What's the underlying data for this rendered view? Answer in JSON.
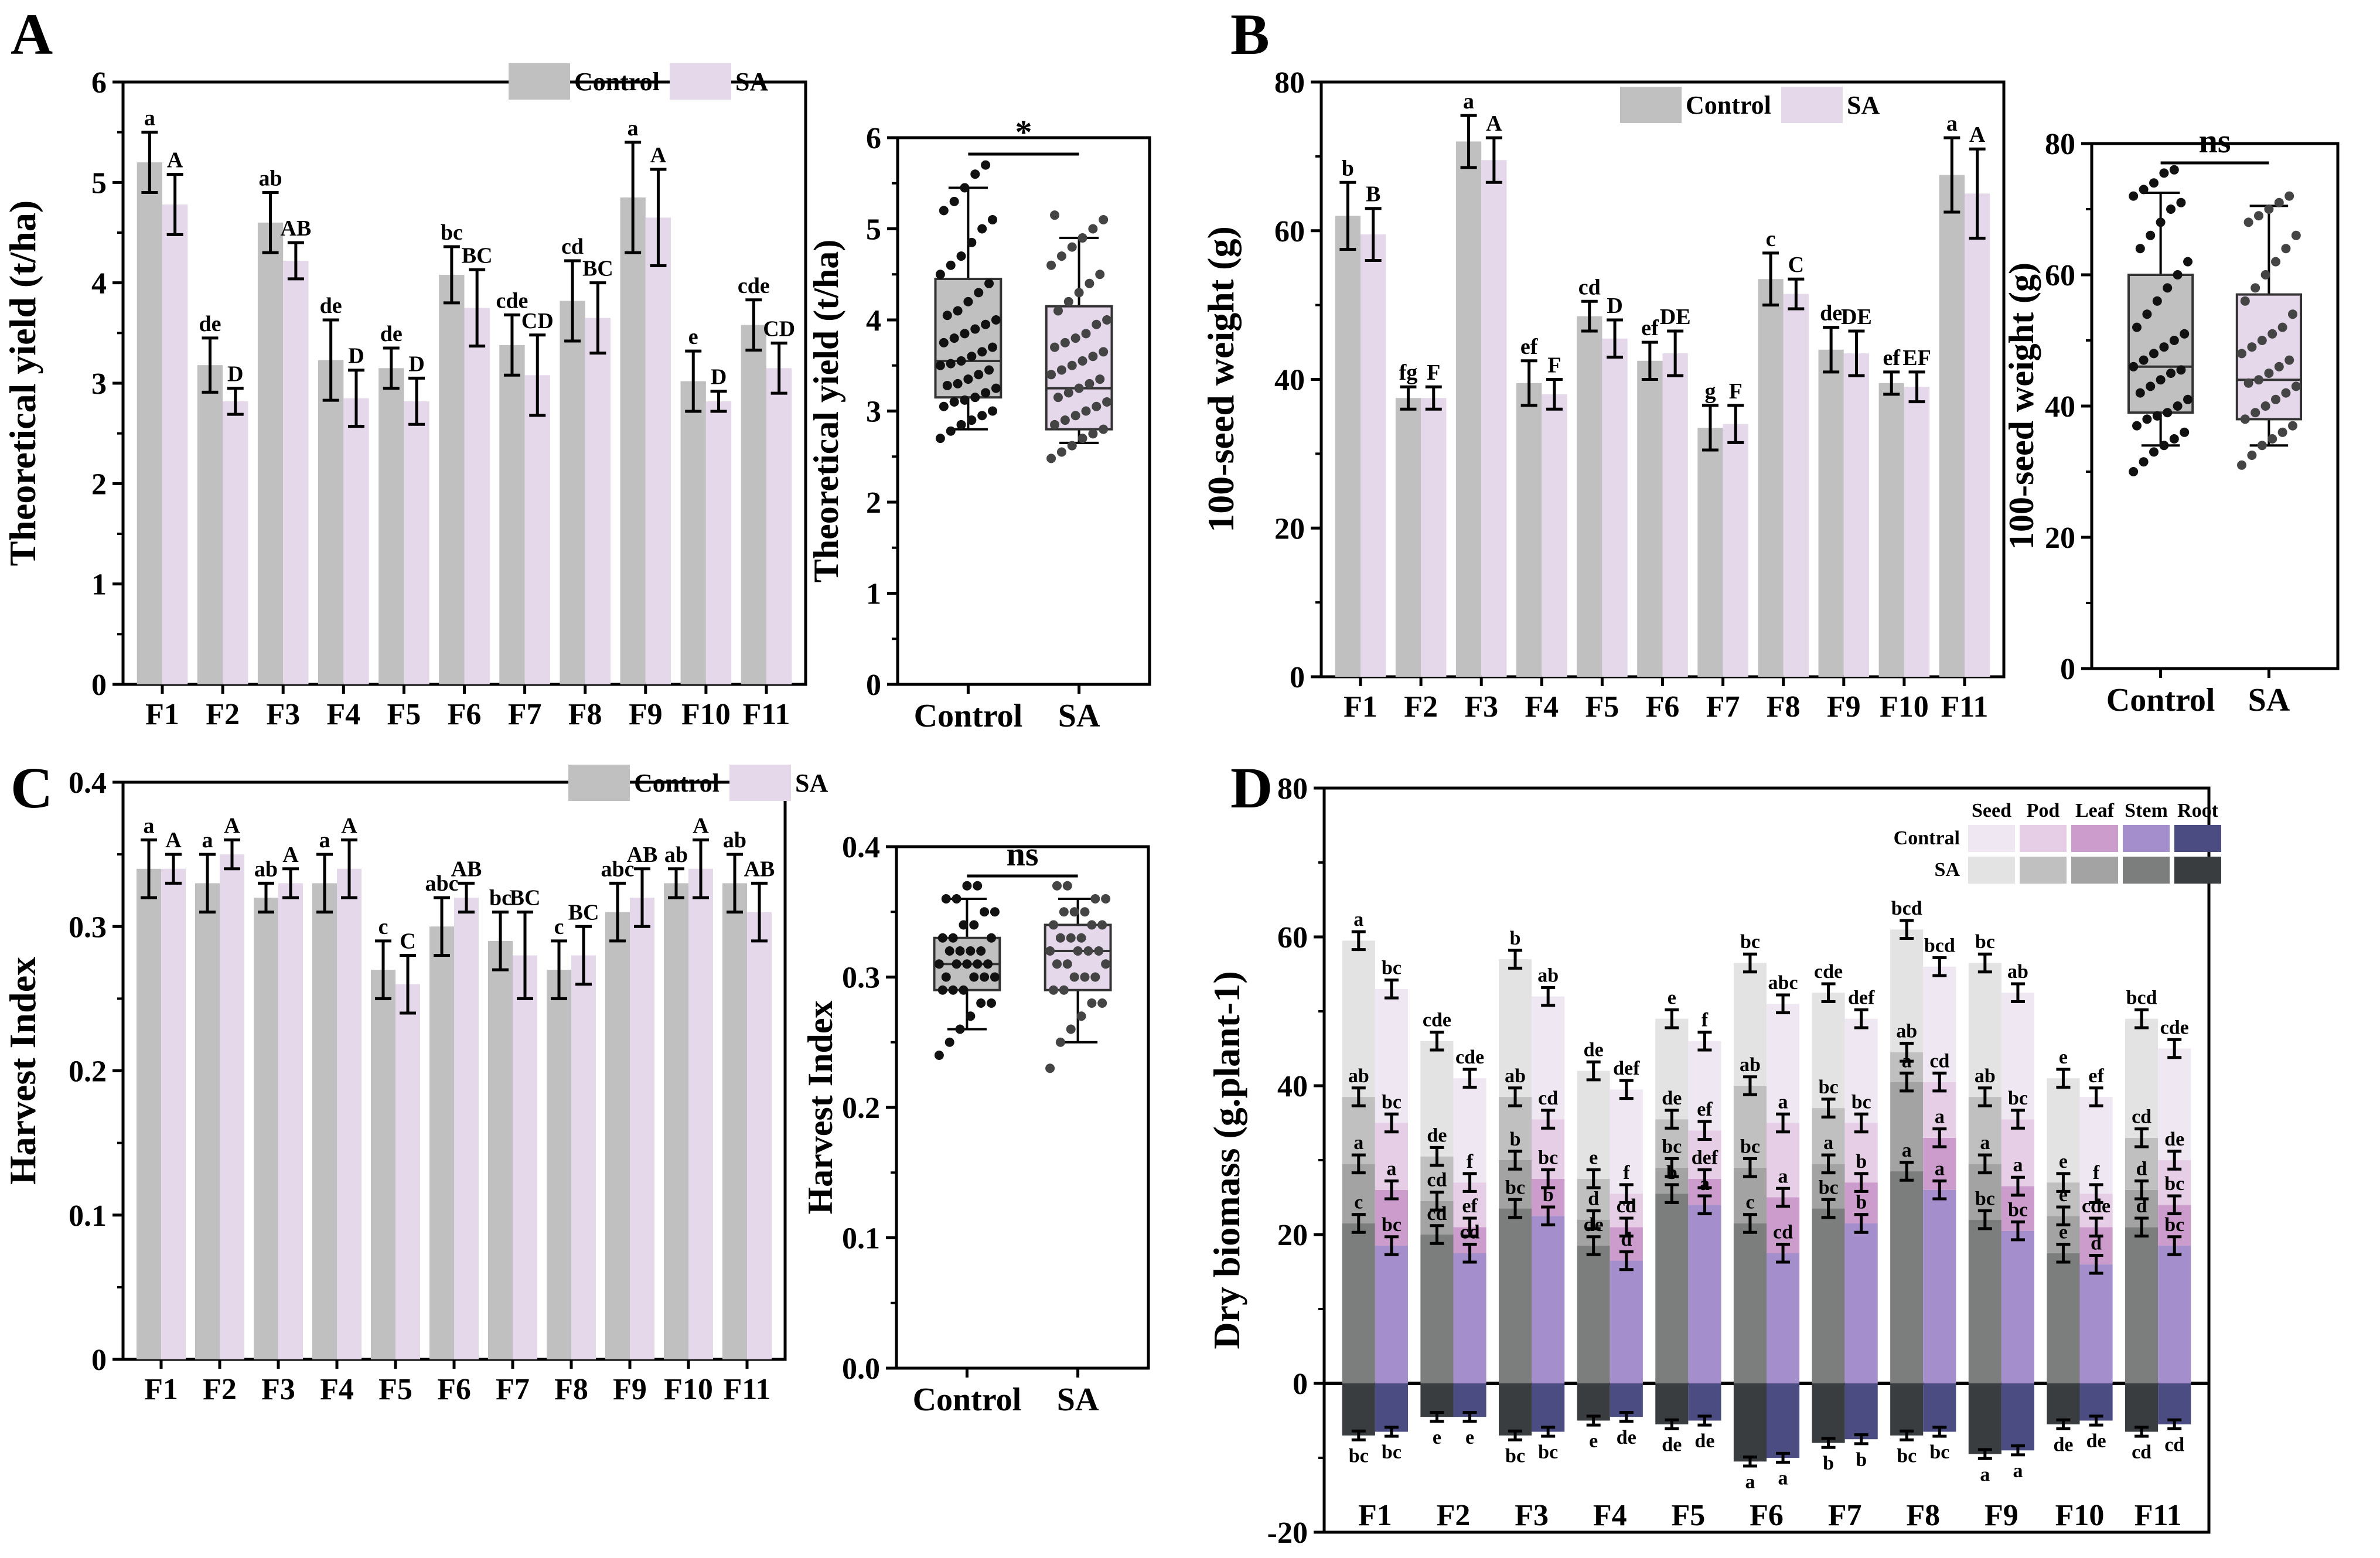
{
  "figure": {
    "panels": [
      {
        "letter": "A"
      },
      {
        "letter": "B"
      },
      {
        "letter": "C"
      },
      {
        "letter": "D"
      }
    ]
  },
  "colors": {
    "control": "#c0c0c0",
    "sa": "#e4d8ea",
    "seed_sa": "#e3e3e3",
    "pod_sa": "#c0c0c0",
    "leaf_sa": "#a3a3a3",
    "stem_sa": "#7c7e7e",
    "root_sa": "#3a3d40",
    "seed_ct": "#efe8f2",
    "pod_ct": "#e6cfe6",
    "leaf_ct": "#cc9ccc",
    "stem_ct": "#a48ecb",
    "root_ct": "#4a4c82"
  },
  "chart_data": [
    {
      "id": "A-bar",
      "type": "bar",
      "title": "",
      "xlabel": "",
      "ylabel": "Theoretical yield (t/ha)",
      "ylim": [
        0,
        6
      ],
      "yticks": [
        "0",
        "1",
        "2",
        "3",
        "4",
        "5",
        "6"
      ],
      "categories": [
        "F1",
        "F2",
        "F3",
        "F4",
        "F5",
        "F6",
        "F7",
        "F8",
        "F9",
        "F10",
        "F11"
      ],
      "legend": [
        "Control",
        "SA"
      ],
      "series": [
        {
          "name": "Control",
          "values": [
            5.2,
            3.18,
            4.6,
            3.23,
            3.15,
            4.08,
            3.38,
            3.82,
            4.85,
            3.02,
            3.58
          ],
          "err": [
            0.3,
            0.27,
            0.3,
            0.4,
            0.2,
            0.28,
            0.3,
            0.4,
            0.55,
            0.3,
            0.25
          ],
          "letters": [
            "a",
            "de",
            "ab",
            "de",
            "de",
            "bc",
            "cde",
            "cd",
            "a",
            "e",
            "cde"
          ]
        },
        {
          "name": "SA",
          "values": [
            4.78,
            2.82,
            4.22,
            2.85,
            2.82,
            3.75,
            3.08,
            3.65,
            4.65,
            2.82,
            3.15
          ],
          "err": [
            0.3,
            0.13,
            0.18,
            0.28,
            0.23,
            0.38,
            0.4,
            0.35,
            0.48,
            0.1,
            0.25
          ],
          "letters": [
            "A",
            "D",
            "AB",
            "D",
            "D",
            "BC",
            "CD",
            "BC",
            "A",
            "D",
            "CD"
          ]
        }
      ]
    },
    {
      "id": "A-box",
      "type": "box",
      "ylabel": "Theoretical yield (t/ha)",
      "ylim": [
        0,
        6
      ],
      "yticks": [
        "0",
        "1",
        "2",
        "3",
        "4",
        "5",
        "6"
      ],
      "categories": [
        "Control",
        "SA"
      ],
      "significance": "*",
      "boxes": [
        {
          "name": "Control",
          "min": 2.8,
          "q1": 3.15,
          "median": 3.55,
          "q3": 4.45,
          "max": 5.45,
          "points": [
            2.7,
            2.78,
            2.85,
            2.9,
            2.95,
            3.0,
            3.05,
            3.1,
            3.12,
            3.15,
            3.2,
            3.25,
            3.28,
            3.3,
            3.35,
            3.4,
            3.45,
            3.5,
            3.52,
            3.55,
            3.6,
            3.65,
            3.7,
            3.75,
            3.8,
            3.85,
            3.9,
            3.95,
            4.0,
            4.05,
            4.1,
            4.2,
            4.3,
            4.4,
            4.5,
            4.6,
            4.7,
            4.85,
            5.0,
            5.1,
            5.2,
            5.3,
            5.45,
            5.6,
            5.7
          ]
        },
        {
          "name": "SA",
          "min": 2.65,
          "q1": 2.8,
          "median": 3.25,
          "q3": 4.15,
          "max": 4.9,
          "points": [
            2.48,
            2.55,
            2.62,
            2.7,
            2.75,
            2.8,
            2.85,
            2.9,
            2.95,
            3.0,
            3.05,
            3.1,
            3.15,
            3.2,
            3.25,
            3.3,
            3.35,
            3.4,
            3.45,
            3.5,
            3.55,
            3.6,
            3.65,
            3.7,
            3.75,
            3.8,
            3.85,
            3.95,
            4.0,
            4.1,
            4.2,
            4.3,
            4.4,
            4.5,
            4.6,
            4.7,
            4.8,
            4.9,
            5.0,
            5.1,
            5.15
          ]
        }
      ]
    },
    {
      "id": "B-bar",
      "type": "bar",
      "ylabel": "100-seed weight (g)",
      "ylim": [
        0,
        80
      ],
      "yticks": [
        "0",
        "20",
        "40",
        "60",
        "80"
      ],
      "categories": [
        "F1",
        "F2",
        "F3",
        "F4",
        "F5",
        "F6",
        "F7",
        "F8",
        "F9",
        "F10",
        "F11"
      ],
      "legend": [
        "Control",
        "SA"
      ],
      "series": [
        {
          "name": "Control",
          "values": [
            62,
            37.5,
            72,
            39.5,
            48.5,
            42.5,
            33.5,
            53.5,
            44,
            39.5,
            67.5
          ],
          "err": [
            4.5,
            1.5,
            3.5,
            3,
            2,
            2.5,
            3,
            3.5,
            3,
            1.5,
            5
          ],
          "letters": [
            "b",
            "fg",
            "a",
            "ef",
            "cd",
            "ef",
            "g",
            "c",
            "de",
            "ef",
            "a"
          ]
        },
        {
          "name": "SA",
          "values": [
            59.5,
            37.5,
            69.5,
            38,
            45.5,
            43.5,
            34,
            51.5,
            43.5,
            39,
            65
          ],
          "err": [
            3.5,
            1.5,
            3,
            2,
            2.5,
            3,
            2.5,
            2,
            3,
            2,
            6
          ],
          "letters": [
            "B",
            "F",
            "A",
            "F",
            "D",
            "DE",
            "F",
            "C",
            "DE",
            "EF",
            "A"
          ]
        }
      ]
    },
    {
      "id": "B-box",
      "type": "box",
      "ylabel": "100-seed weight (g)",
      "ylim": [
        0,
        80
      ],
      "yticks": [
        "0",
        "20",
        "40",
        "60",
        "80"
      ],
      "categories": [
        "Control",
        "SA"
      ],
      "significance": "ns",
      "boxes": [
        {
          "name": "Control",
          "min": 34,
          "q1": 39,
          "median": 46,
          "q3": 60,
          "max": 72.5,
          "points": [
            30,
            31.5,
            33,
            34,
            35,
            36,
            37,
            38,
            38.5,
            39,
            40,
            41,
            42,
            43,
            44,
            45,
            45.5,
            46,
            47,
            48,
            49,
            50,
            51,
            52,
            54,
            56,
            58,
            60,
            62,
            64,
            66,
            68,
            70,
            71,
            72,
            73,
            74,
            75.5,
            76
          ]
        },
        {
          "name": "SA",
          "min": 34,
          "q1": 38,
          "median": 44,
          "q3": 57,
          "max": 70.5,
          "points": [
            31,
            32.5,
            34,
            35,
            36,
            37,
            38,
            39,
            40,
            41,
            42,
            43,
            43.5,
            44,
            45,
            46,
            47,
            48,
            49,
            50,
            51,
            52,
            54,
            56,
            58,
            60,
            62,
            64,
            66,
            68,
            69,
            70,
            71,
            72
          ]
        }
      ]
    },
    {
      "id": "C-bar",
      "type": "bar",
      "ylabel": "Harvest Index",
      "ylim": [
        0,
        0.4
      ],
      "yticks": [
        "0",
        "0.1",
        "0.2",
        "0.3",
        "0.4"
      ],
      "categories": [
        "F1",
        "F2",
        "F3",
        "F4",
        "F5",
        "F6",
        "F7",
        "F8",
        "F9",
        "F10",
        "F11"
      ],
      "legend": [
        "Control",
        "SA"
      ],
      "series": [
        {
          "name": "Control",
          "values": [
            0.34,
            0.33,
            0.32,
            0.33,
            0.27,
            0.3,
            0.29,
            0.27,
            0.31,
            0.33,
            0.33
          ],
          "err": [
            0.02,
            0.02,
            0.01,
            0.02,
            0.02,
            0.02,
            0.02,
            0.02,
            0.02,
            0.01,
            0.02
          ],
          "letters": [
            "a",
            "a",
            "ab",
            "a",
            "c",
            "abc",
            "bc",
            "c",
            "abc",
            "ab",
            "ab"
          ]
        },
        {
          "name": "SA",
          "values": [
            0.34,
            0.35,
            0.33,
            0.34,
            0.26,
            0.32,
            0.28,
            0.28,
            0.32,
            0.34,
            0.31
          ],
          "err": [
            0.01,
            0.01,
            0.01,
            0.02,
            0.02,
            0.01,
            0.03,
            0.02,
            0.02,
            0.02,
            0.02
          ],
          "letters": [
            "A",
            "A",
            "A",
            "A",
            "C",
            "AB",
            "BC",
            "BC",
            "AB",
            "A",
            "AB"
          ]
        }
      ]
    },
    {
      "id": "C-box",
      "type": "box",
      "ylabel": "Harvest Index",
      "ylim": [
        0,
        0.4
      ],
      "yticks": [
        "0.0",
        "0.1",
        "0.2",
        "0.3",
        "0.4"
      ],
      "categories": [
        "Control",
        "SA"
      ],
      "significance": "ns",
      "boxes": [
        {
          "name": "Control",
          "min": 0.26,
          "q1": 0.29,
          "median": 0.31,
          "q3": 0.33,
          "max": 0.36,
          "points": [
            0.24,
            0.25,
            0.26,
            0.27,
            0.28,
            0.28,
            0.29,
            0.29,
            0.29,
            0.3,
            0.3,
            0.3,
            0.3,
            0.31,
            0.31,
            0.31,
            0.31,
            0.31,
            0.32,
            0.32,
            0.32,
            0.32,
            0.33,
            0.33,
            0.33,
            0.34,
            0.34,
            0.35,
            0.35,
            0.36,
            0.36,
            0.37,
            0.37
          ]
        },
        {
          "name": "SA",
          "min": 0.25,
          "q1": 0.29,
          "median": 0.32,
          "q3": 0.34,
          "max": 0.36,
          "points": [
            0.23,
            0.25,
            0.26,
            0.27,
            0.28,
            0.28,
            0.29,
            0.29,
            0.3,
            0.3,
            0.3,
            0.31,
            0.31,
            0.31,
            0.32,
            0.32,
            0.32,
            0.32,
            0.33,
            0.33,
            0.33,
            0.34,
            0.34,
            0.34,
            0.35,
            0.35,
            0.35,
            0.36,
            0.36,
            0.37,
            0.37
          ]
        }
      ]
    },
    {
      "id": "D-stacked",
      "type": "bar",
      "subtype": "stacked",
      "ylabel": "Dry biomass (g.plant-1)",
      "ylim": [
        -20,
        80
      ],
      "yticks": [
        "-20",
        "0",
        "20",
        "40",
        "60",
        "80"
      ],
      "categories": [
        "F1",
        "F2",
        "F3",
        "F4",
        "F5",
        "F6",
        "F7",
        "F8",
        "F9",
        "F10",
        "F11"
      ],
      "legend": {
        "columns": [
          "Seed",
          "Pod",
          "Leaf",
          "Stem",
          "Root"
        ],
        "rows": [
          "Contral",
          "SA"
        ]
      },
      "groups": [
        {
          "name": "SA",
          "stem": [
            21.5,
            20,
            23.5,
            18.5,
            25.5,
            21.5,
            23.5,
            28.5,
            22,
            17.5,
            21
          ],
          "leaf": [
            29.5,
            24.5,
            30,
            22,
            29,
            29,
            29.5,
            40.5,
            29.5,
            22.5,
            26
          ],
          "pod": [
            38.5,
            30.5,
            38.5,
            27.5,
            35.5,
            40,
            37,
            44.5,
            38.5,
            27,
            33
          ],
          "seed": [
            59.5,
            46,
            57,
            42,
            49,
            56.5,
            52.5,
            61,
            56.5,
            41,
            49
          ],
          "root": [
            -7,
            -4.5,
            -7,
            -5,
            -5.5,
            -10.5,
            -8,
            -7,
            -9.5,
            -5.5,
            -6.5
          ],
          "letters": {
            "seed": [
              "a",
              "cde",
              "b",
              "de",
              "e",
              "bc",
              "cde",
              "bcd",
              "bc",
              "e",
              "bcd"
            ],
            "pod": [
              "ab",
              "de",
              "ab",
              "e",
              "de",
              "ab",
              "bc",
              "ab",
              "ab",
              "e",
              "cd"
            ],
            "leaf": [
              "a",
              "cd",
              "b",
              "d",
              "bc",
              "bc",
              "a",
              "a",
              "a",
              "e",
              "d"
            ],
            "stem": [
              "c",
              "cd",
              "bc",
              "de",
              "b",
              "c",
              "bc",
              "a",
              "bc",
              "e",
              "d"
            ],
            "root": [
              "bc",
              "e",
              "bc",
              "e",
              "de",
              "a",
              "b",
              "bc",
              "a",
              "de",
              "cd"
            ]
          }
        },
        {
          "name": "Contral",
          "stem": [
            18.5,
            17.5,
            22.5,
            16.5,
            24,
            17.5,
            21.5,
            26,
            20.5,
            16,
            18.5
          ],
          "leaf": [
            26,
            21,
            27.5,
            21,
            27.5,
            25,
            27,
            33,
            26.5,
            21,
            24
          ],
          "pod": [
            35,
            27,
            35.5,
            25.5,
            34,
            35,
            35,
            40.5,
            35.5,
            25.5,
            30
          ],
          "seed": [
            53,
            41,
            52,
            39.5,
            46,
            51,
            49,
            56,
            52.5,
            38.5,
            45
          ],
          "root": [
            -6.5,
            -4.5,
            -6.5,
            -4.5,
            -5,
            -10,
            -7.5,
            -6.5,
            -9,
            -5,
            -5.5
          ],
          "letters": {
            "seed": [
              "bc",
              "cde",
              "ab",
              "def",
              "f",
              "abc",
              "def",
              "bcd",
              "ab",
              "ef",
              "cde"
            ],
            "pod": [
              "bc",
              "f",
              "cd",
              "f",
              "ef",
              "a",
              "bc",
              "cd",
              "bc",
              "f",
              "de"
            ],
            "leaf": [
              "a",
              "ef",
              "bc",
              "cd",
              "def",
              "a",
              "b",
              "a",
              "a",
              "cde",
              "bc"
            ],
            "stem": [
              "bc",
              "cd",
              "b",
              "d",
              "a",
              "cd",
              "b",
              "a",
              "bc",
              "d",
              "bc"
            ],
            "root": [
              "bc",
              "e",
              "bc",
              "de",
              "de",
              "a",
              "b",
              "bc",
              "a",
              "de",
              "cd"
            ]
          }
        }
      ]
    }
  ]
}
